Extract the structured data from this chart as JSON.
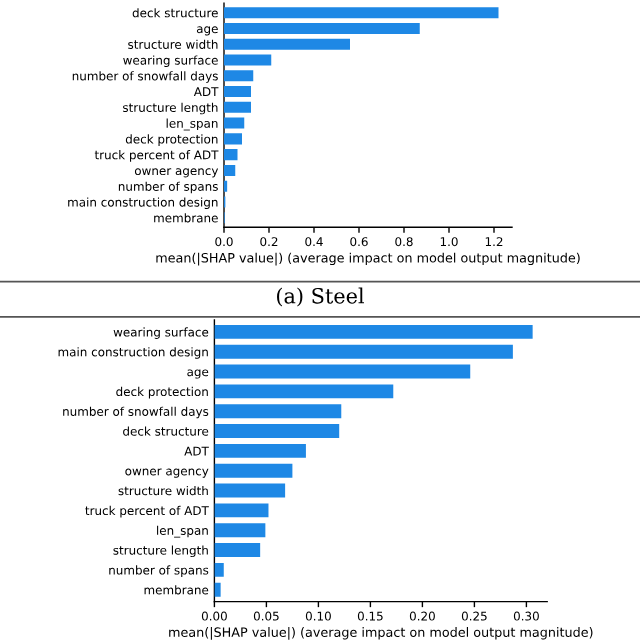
{
  "chart_data": [
    {
      "type": "bar",
      "orientation": "horizontal",
      "categories": [
        "deck structure",
        "age",
        "structure width",
        "wearing surface",
        "number of snowfall days",
        "ADT",
        "structure length",
        "len_span",
        "deck protection",
        "truck percent of ADT",
        "owner agency",
        "number of spans",
        "main construction design",
        "membrane"
      ],
      "values": [
        1.22,
        0.87,
        0.56,
        0.21,
        0.13,
        0.12,
        0.12,
        0.09,
        0.08,
        0.06,
        0.05,
        0.014,
        0.006,
        0.003
      ],
      "color": "#1e88e5",
      "xlim": [
        0,
        1.28
      ],
      "xticks": [
        {
          "value": 0,
          "label": "0.0"
        },
        0.2,
        0.4,
        0.6,
        0.8,
        {
          "value": 1,
          "label": "1.0"
        },
        1.2
      ],
      "xlabel": "mean(|SHAP value|) (average impact on model output magnitude)",
      "annotations": [
        "(a) Steel"
      ],
      "grid": false,
      "legend": false
    },
    {
      "type": "bar",
      "orientation": "horizontal",
      "categories": [
        "wearing surface",
        "main construction design",
        "age",
        "deck protection",
        "number of snowfall days",
        "deck structure",
        "ADT",
        "owner agency",
        "structure width",
        "truck percent of ADT",
        "len_span",
        "structure length",
        "number of spans",
        "membrane"
      ],
      "values": [
        0.306,
        0.287,
        0.246,
        0.172,
        0.122,
        0.12,
        0.088,
        0.075,
        0.068,
        0.052,
        0.049,
        0.044,
        0.009,
        0.006
      ],
      "color": "#1e88e5",
      "xlim": [
        0,
        0.32
      ],
      "xticks": [
        {
          "value": 0,
          "label": "0.00"
        },
        0.05,
        {
          "value": 0.1,
          "label": "0.10"
        },
        0.15,
        {
          "value": 0.2,
          "label": "0.20"
        },
        0.25,
        {
          "value": 0.3,
          "label": "0.30"
        }
      ],
      "xlabel": "mean(|SHAP value|) (average impact on model output magnitude)",
      "grid": false,
      "legend": false
    }
  ]
}
